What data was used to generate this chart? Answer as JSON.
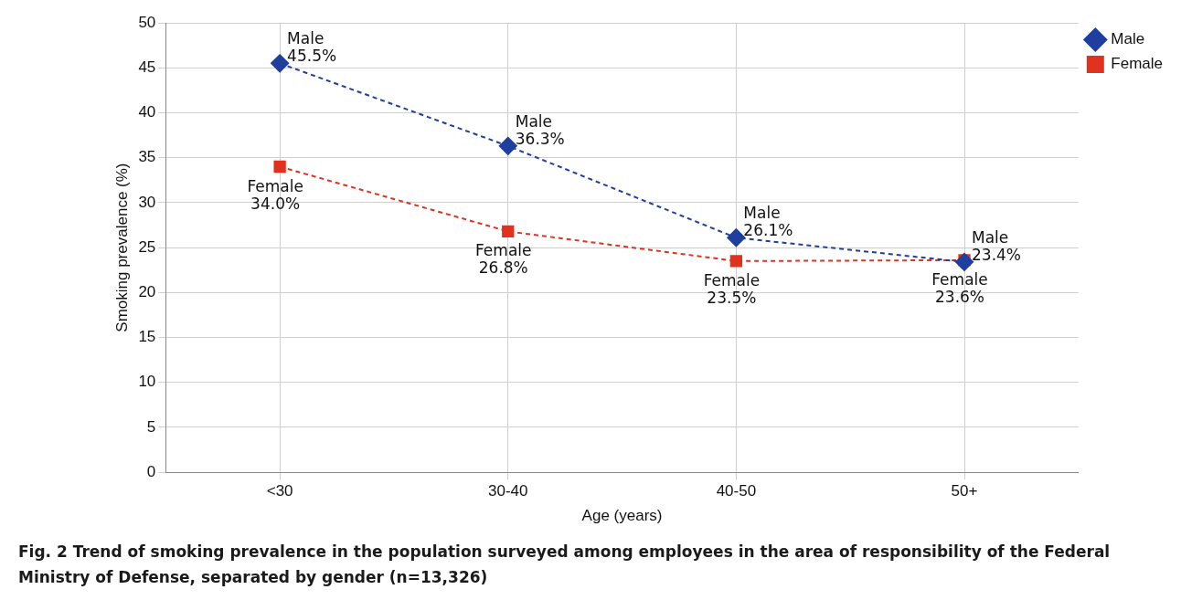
{
  "chart_data": {
    "type": "line",
    "title": "Fig. 2   Trend of smoking prevalence in the population surveyed among employees in the area of responsibility of the Federal Ministry of Defense, separated by gender (n=13,326)",
    "xlabel": "Age (years)",
    "ylabel": "Smoking prevalence (%)",
    "categories": [
      "<30",
      "30-40",
      "40-50",
      "50+"
    ],
    "series": [
      {
        "name": "Male",
        "color": "#1f3f9e",
        "marker": "diamond",
        "values": [
          45.5,
          36.3,
          26.1,
          23.4
        ],
        "value_labels": [
          "45.5%",
          "36.3%",
          "26.1%",
          "23.4%"
        ]
      },
      {
        "name": "Female",
        "color": "#e0321f",
        "marker": "square",
        "values": [
          34.0,
          26.8,
          23.5,
          23.6
        ],
        "value_labels": [
          "34.0%",
          "26.8%",
          "23.5%",
          "23.6%"
        ]
      }
    ],
    "ylim": [
      0,
      50
    ],
    "yticks": [
      0,
      5,
      10,
      15,
      20,
      25,
      30,
      35,
      40,
      45,
      50
    ],
    "grid": true,
    "legend": "top right",
    "line_style": "dashed"
  }
}
